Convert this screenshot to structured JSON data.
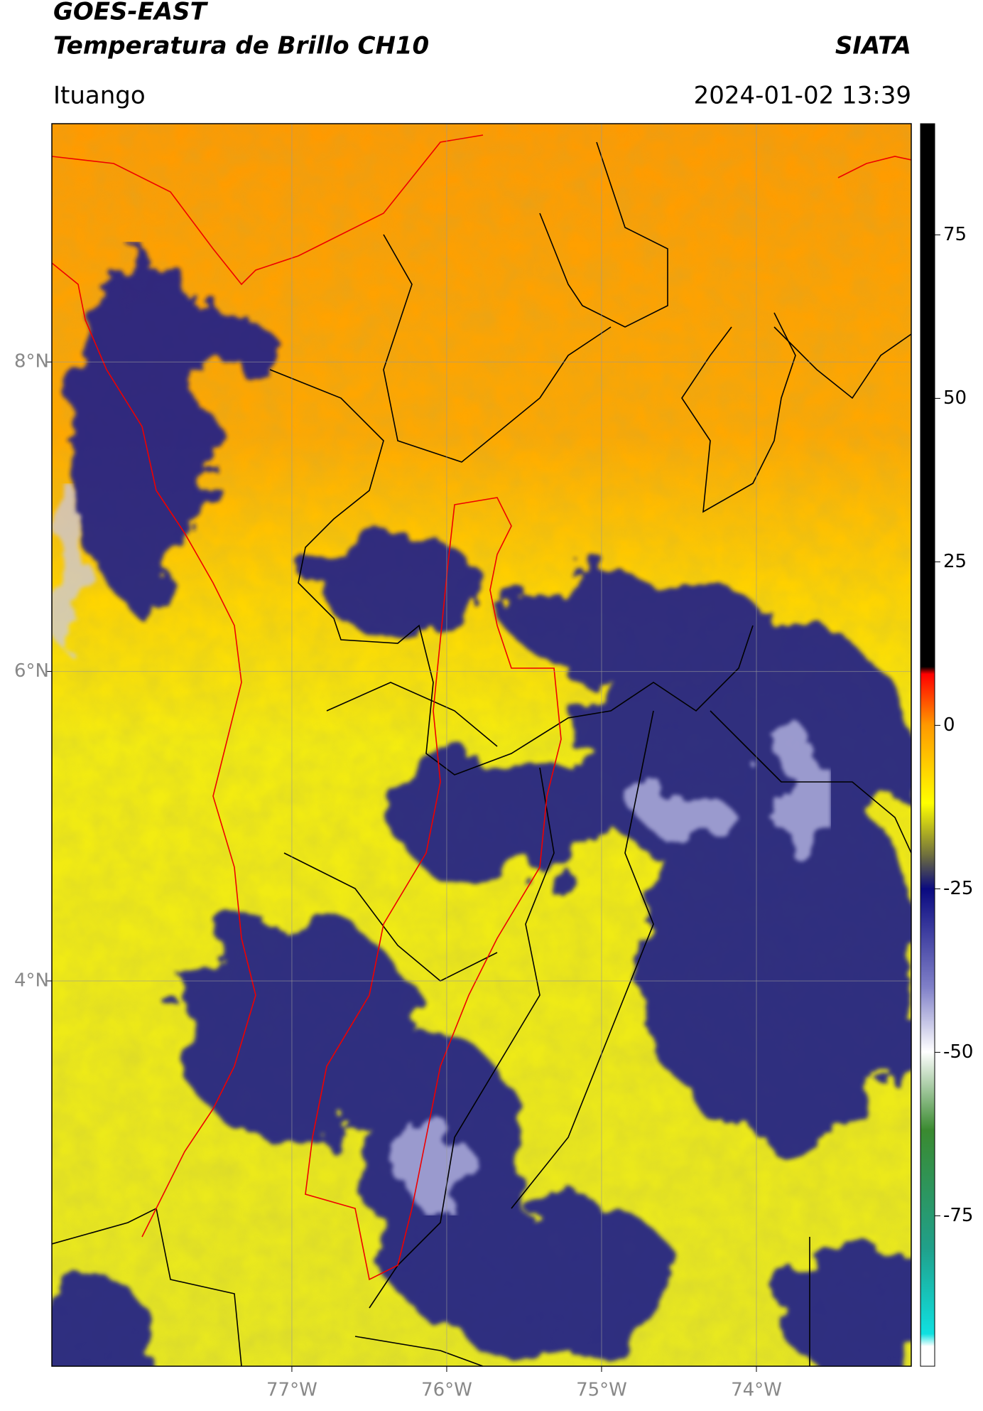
{
  "header": {
    "title": "GOES-EAST",
    "subtitle": "Temperatura de Brillo CH10",
    "source": "SIATA",
    "region": "Ituango",
    "datetime": "2024-01-02 13:39"
  },
  "chart_data": {
    "type": "map",
    "xlim": [
      -78.55,
      -73.0
    ],
    "ylim": [
      1.51,
      9.54
    ],
    "xticks": [
      {
        "value": -77,
        "label": "77°W"
      },
      {
        "value": -76,
        "label": "76°W"
      },
      {
        "value": -75,
        "label": "75°W"
      },
      {
        "value": -74,
        "label": "74°W"
      }
    ],
    "yticks": [
      {
        "value": 4,
        "label": "4°N"
      },
      {
        "value": 6,
        "label": "6°N"
      },
      {
        "value": 8,
        "label": "8°N"
      }
    ],
    "grid": true,
    "colorbar": {
      "ylim": [
        -98,
        92
      ],
      "yticks": [
        -75,
        -50,
        -25,
        0,
        25,
        50,
        75
      ]
    }
  }
}
